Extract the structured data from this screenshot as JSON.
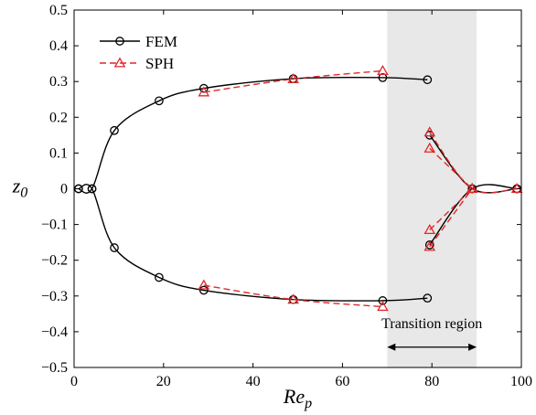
{
  "chart_data": {
    "type": "line",
    "xlabel_main": "Re",
    "xlabel_sub": "p",
    "ylabel_main": "z",
    "ylabel_sub": "0",
    "xlim": [
      0,
      100
    ],
    "ylim": [
      -0.5,
      0.5
    ],
    "xticks": [
      0,
      20,
      40,
      60,
      80,
      100
    ],
    "xtick_labels": [
      "0",
      "20",
      "40",
      "60",
      "80",
      "100"
    ],
    "yticks": [
      -0.5,
      -0.4,
      -0.3,
      -0.2,
      -0.1,
      0,
      0.1,
      0.2,
      0.3,
      0.4,
      0.5
    ],
    "ytick_labels": [
      "−0.5",
      "−0.4",
      "−0.3",
      "−0.2",
      "−0.1",
      "0",
      "0.1",
      "0.2",
      "0.3",
      "0.4",
      "0.5"
    ],
    "grid": false,
    "legend_position": "top-left",
    "shaded_region": {
      "x": [
        70,
        90
      ],
      "label": "Transition region",
      "color": "#e8e8e8"
    },
    "series": [
      {
        "name": "FEM",
        "color": "#000000",
        "line_style": "solid",
        "marker": "circle",
        "branches": [
          {
            "x": [
              1,
              4,
              9,
              19,
              29,
              49,
              69,
              79
            ],
            "y": [
              0,
              0,
              0.163,
              0.246,
              0.281,
              0.308,
              0.311,
              0.305
            ]
          },
          {
            "x": [
              1,
              4,
              9,
              19,
              29,
              49,
              69,
              79
            ],
            "y": [
              0,
              0,
              -0.165,
              -0.248,
              -0.284,
              -0.31,
              -0.313,
              -0.306
            ]
          },
          {
            "x": [
              79.5,
              89,
              99
            ],
            "y": [
              0.15,
              0,
              0
            ]
          },
          {
            "x": [
              79.5,
              89,
              99
            ],
            "y": [
              -0.157,
              0,
              0
            ]
          }
        ]
      },
      {
        "name": "SPH",
        "color": "#e0282a",
        "line_style": "dashed",
        "marker": "triangle",
        "branches": [
          {
            "x": [
              29,
              49,
              69
            ],
            "y": [
              0.27,
              0.307,
              0.33
            ]
          },
          {
            "x": [
              29,
              49,
              69
            ],
            "y": [
              -0.27,
              -0.31,
              -0.33
            ]
          },
          {
            "x": [
              79.5,
              89,
              99
            ],
            "y": [
              0.158,
              0,
              0
            ]
          },
          {
            "x": [
              79.5,
              89
            ],
            "y": [
              0.113,
              0
            ]
          },
          {
            "x": [
              79.5,
              89
            ],
            "y": [
              -0.115,
              0
            ]
          },
          {
            "x": [
              79.5,
              89
            ],
            "y": [
              -0.162,
              0
            ]
          }
        ]
      }
    ]
  }
}
